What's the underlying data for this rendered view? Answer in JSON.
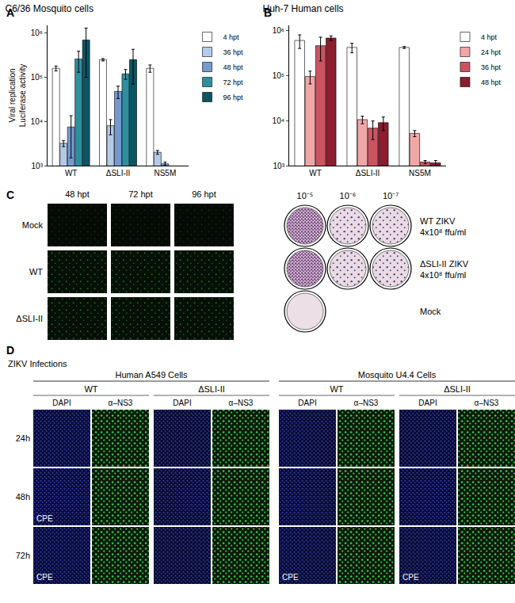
{
  "chart_data": [
    {
      "type": "bar",
      "panel": "A",
      "title": "C6/36 Mosquito cells",
      "ylabel": [
        "Viral replication",
        "Luciferase activity"
      ],
      "categories": [
        "WT",
        "ΔSLI-II",
        "NS5M"
      ],
      "log": "y",
      "grid": false,
      "legend": "right",
      "ylim": [
        1000,
        1500000
      ],
      "yticks": [
        {
          "value": 1000,
          "label": "10³"
        },
        {
          "value": 10000,
          "label": "10⁴"
        },
        {
          "value": 100000,
          "label": "10⁵"
        },
        {
          "value": 1000000,
          "label": "10⁶"
        }
      ],
      "series": [
        {
          "name": "4 hpt",
          "color": "#ffffff",
          "values": [
            160000,
            250000,
            160000
          ],
          "errors": [
            20000,
            15000,
            30000
          ]
        },
        {
          "name": "36 hpt",
          "color": "#b3cbe8",
          "values": [
            3200,
            8000,
            2000
          ],
          "errors": [
            500,
            3000,
            200
          ]
        },
        {
          "name": "48 hpt",
          "color": "#7599cf",
          "values": [
            7500,
            48000,
            1100
          ],
          "errors": [
            6000,
            15000,
            100
          ]
        },
        {
          "name": "72 hpt",
          "color": "#2f8f9f",
          "values": [
            260000,
            120000,
            null
          ],
          "errors": [
            130000,
            30000,
            null
          ]
        },
        {
          "name": "96 hpt",
          "color": "#0d5563",
          "values": [
            700000,
            250000,
            null
          ],
          "errors": [
            600000,
            180000,
            null
          ]
        }
      ]
    },
    {
      "type": "bar",
      "panel": "B",
      "title": "Huh-7 Human cells",
      "categories": [
        "WT",
        "ΔSLI-II",
        "NS5M"
      ],
      "log": "y",
      "grid": false,
      "legend": "right",
      "ylim": [
        1000,
        1300000
      ],
      "yticks": [
        {
          "value": 1000,
          "label": "10³"
        },
        {
          "value": 10000,
          "label": "10⁴"
        },
        {
          "value": 100000,
          "label": "10⁵"
        },
        {
          "value": 1000000,
          "label": "10⁶"
        }
      ],
      "series": [
        {
          "name": "4 hpt",
          "color": "#ffffff",
          "values": [
            600000,
            420000,
            420000
          ],
          "errors": [
            200000,
            100000,
            20000
          ]
        },
        {
          "name": "24 hpt",
          "color": "#f1a7a7",
          "values": [
            95000,
            10500,
            5200
          ],
          "errors": [
            30000,
            2000,
            800
          ]
        },
        {
          "name": "36 hpt",
          "color": "#cc5360",
          "values": [
            460000,
            6800,
            1200
          ],
          "errors": [
            250000,
            3000,
            100
          ]
        },
        {
          "name": "48 hpt",
          "color": "#8c1c2e",
          "values": [
            680000,
            9000,
            1150
          ],
          "errors": [
            80000,
            3000,
            150
          ]
        }
      ]
    }
  ],
  "panel_C": {
    "label": "C",
    "time_points": [
      "48 hpt",
      "72 hpt",
      "96 hpt"
    ],
    "rows": [
      "Mock",
      "WT",
      "ΔSLI-II"
    ],
    "dilutions": [
      "10⁻⁵",
      "10⁻⁶",
      "10⁻⁷"
    ],
    "plaque_rows": [
      {
        "name": "WT ZIKV",
        "titer": "4x10⁸ ffu/ml"
      },
      {
        "name": "ΔSLI-II ZIKV",
        "titer": "4x10⁸ ffu/ml"
      },
      {
        "name": "Mock"
      }
    ]
  },
  "panel_D": {
    "label": "D",
    "title": "ZIKV Infections",
    "groups": [
      {
        "name": "Human A549 Cells",
        "subgroups": [
          {
            "name": "WT",
            "cpe": [
              "48h",
              "72h"
            ]
          },
          {
            "name": "ΔSLI-II",
            "cpe": []
          }
        ]
      },
      {
        "name": "Mosquito U4.4 Cells",
        "subgroups": [
          {
            "name": "WT",
            "cpe": [
              "72h"
            ]
          },
          {
            "name": "ΔSLI-II",
            "cpe": [
              "72h"
            ]
          }
        ]
      }
    ],
    "stains": [
      "DAPI",
      "α–NS3"
    ],
    "times": [
      "24h",
      "48h",
      "72h"
    ],
    "cpe_label": "CPE"
  }
}
